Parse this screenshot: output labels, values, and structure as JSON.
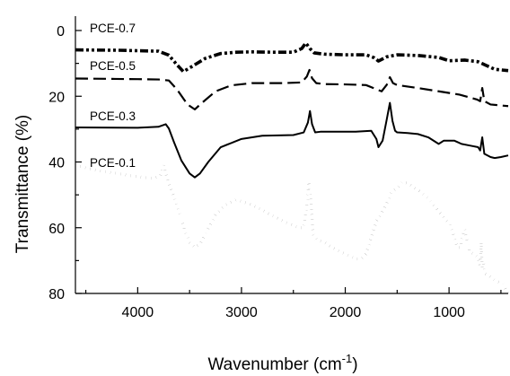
{
  "chart_data": {
    "type": "line",
    "xlabel_main": "Wavenumber (cm",
    "xlabel_sup": "-1",
    "xlabel_tail": ")",
    "ylabel": "Transmittance (%)",
    "xlim": [
      4600,
      430
    ],
    "ylim": [
      0,
      80
    ],
    "x_reversed": true,
    "y_reversed": true,
    "x_ticks": [
      4000,
      3000,
      2000,
      1000
    ],
    "y_ticks": [
      0,
      20,
      40,
      60,
      80
    ],
    "grid": false,
    "legend": "none",
    "series": [
      {
        "name": "PCE-0.7",
        "style": "dash-dot-dot",
        "stroke_width": 3.6,
        "x": [
          4600,
          4200,
          3800,
          3700,
          3620,
          3560,
          3480,
          3350,
          3200,
          3050,
          2900,
          2700,
          2500,
          2420,
          2380,
          2340,
          2300,
          2200,
          2000,
          1800,
          1720,
          1680,
          1600,
          1500,
          1300,
          1100,
          1000,
          850,
          720,
          650,
          560,
          430
        ],
        "values": [
          5.9,
          6.0,
          6.3,
          7.5,
          10.5,
          12.5,
          11.0,
          8.5,
          7.0,
          6.6,
          6.5,
          6.6,
          6.6,
          5.5,
          3.8,
          5.5,
          6.8,
          7.2,
          7.4,
          7.4,
          8.3,
          9.3,
          8.0,
          7.4,
          7.6,
          8.2,
          9.2,
          9.0,
          9.5,
          10.5,
          11.8,
          12.2
        ]
      },
      {
        "name": "PCE-0.5",
        "style": "dashed",
        "stroke_width": 2.2,
        "x": [
          4600,
          4000,
          3800,
          3700,
          3620,
          3520,
          3450,
          3380,
          3250,
          3100,
          2900,
          2600,
          2420,
          2370,
          2345,
          2320,
          2280,
          2200,
          2000,
          1800,
          1650,
          1600,
          1570,
          1540,
          1500,
          1300,
          1100,
          900,
          730,
          700,
          680,
          660,
          600,
          430
        ],
        "values": [
          14.6,
          14.8,
          14.9,
          15.2,
          18.0,
          22.5,
          24.0,
          22.0,
          18.5,
          16.7,
          16.0,
          16.0,
          15.8,
          14.0,
          12.0,
          14.5,
          16.0,
          16.3,
          16.4,
          16.6,
          18.5,
          16.5,
          14.2,
          16.0,
          16.6,
          17.5,
          18.5,
          19.5,
          21.0,
          21.5,
          17.5,
          21.5,
          22.5,
          23.0
        ]
      },
      {
        "name": "PCE-0.3",
        "style": "solid",
        "stroke_width": 2.0,
        "x": [
          4600,
          4000,
          3800,
          3730,
          3700,
          3650,
          3580,
          3500,
          3450,
          3400,
          3320,
          3200,
          3000,
          2800,
          2500,
          2400,
          2360,
          2340,
          2320,
          2290,
          2240,
          2100,
          1900,
          1750,
          1700,
          1680,
          1640,
          1600,
          1570,
          1545,
          1520,
          1500,
          1400,
          1300,
          1200,
          1100,
          1050,
          1000,
          950,
          880,
          800,
          720,
          700,
          680,
          660,
          600,
          560,
          500,
          430
        ],
        "values": [
          29.5,
          29.6,
          29.3,
          28.5,
          29.8,
          34.0,
          39.5,
          43.5,
          44.7,
          43.5,
          40.0,
          35.5,
          33.0,
          32.0,
          31.8,
          31.0,
          28.0,
          24.5,
          28.5,
          31.0,
          30.8,
          30.8,
          30.8,
          30.5,
          33.0,
          35.5,
          33.5,
          27.0,
          22.0,
          27.5,
          30.5,
          31.0,
          31.2,
          31.5,
          32.5,
          34.5,
          33.5,
          33.5,
          33.5,
          34.5,
          35.0,
          35.5,
          36.5,
          32.5,
          37.5,
          38.5,
          38.8,
          38.5,
          38.0
        ]
      },
      {
        "name": "PCE-0.1",
        "style": "dotted",
        "stroke_width": 3.2,
        "x": [
          4600,
          4400,
          4200,
          4000,
          3850,
          3780,
          3750,
          3720,
          3690,
          3650,
          3600,
          3550,
          3500,
          3450,
          3400,
          3350,
          3250,
          3150,
          3050,
          2900,
          2750,
          2600,
          2450,
          2400,
          2370,
          2350,
          2330,
          2310,
          2280,
          2200,
          2100,
          2000,
          1900,
          1850,
          1800,
          1750,
          1700,
          1650,
          1600,
          1550,
          1500,
          1450,
          1400,
          1300,
          1200,
          1100,
          1050,
          1000,
          960,
          920,
          890,
          870,
          850,
          830,
          800,
          760,
          720,
          700,
          690,
          680,
          670,
          650,
          600,
          560,
          520,
          480,
          450,
          430
        ],
        "values": [
          41.0,
          42.5,
          43.5,
          44.5,
          45.0,
          44.0,
          41.0,
          44.5,
          47.5,
          50.5,
          55.0,
          60.5,
          64.5,
          66.0,
          65.0,
          62.0,
          56.0,
          53.0,
          51.5,
          53.0,
          55.5,
          58.0,
          60.0,
          60.0,
          53.0,
          46.0,
          52.0,
          62.0,
          63.5,
          64.5,
          66.5,
          68.0,
          69.5,
          69.5,
          68.0,
          63.0,
          58.0,
          55.5,
          52.5,
          49.0,
          48.0,
          46.0,
          46.5,
          48.5,
          51.0,
          55.0,
          57.0,
          58.5,
          62.0,
          66.0,
          66.0,
          62.5,
          60.5,
          63.5,
          67.5,
          68.0,
          69.0,
          72.0,
          64.5,
          72.5,
          70.5,
          74.0,
          75.0,
          76.0,
          76.5,
          77.0,
          79.0,
          80.0
        ]
      }
    ]
  }
}
